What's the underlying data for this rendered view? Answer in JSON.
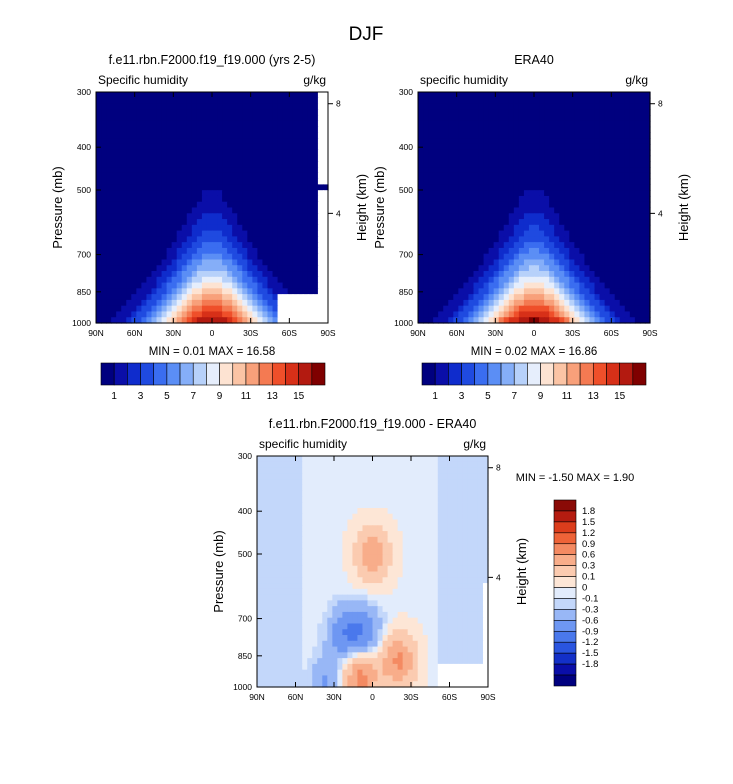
{
  "figure": {
    "title": "DJF"
  },
  "colors": {
    "abs_levels": [
      "#00007f",
      "#0a0ea8",
      "#0f2ccc",
      "#1f4ae0",
      "#3a6df0",
      "#5b8ef5",
      "#85aef8",
      "#b7d1fa",
      "#e6eefc",
      "#fde3d2",
      "#fbc4a5",
      "#f8a07a",
      "#f47a52",
      "#ef4f2a",
      "#d73018",
      "#b31a10",
      "#7f0000"
    ],
    "diff_levels": [
      "#00007f",
      "#0a0ea8",
      "#1330c8",
      "#2a55e0",
      "#4a78ec",
      "#6e97f2",
      "#98b7f6",
      "#c3d7fa",
      "#e2ecfc",
      "#fde6d6",
      "#fbcbb0",
      "#f8ad8a",
      "#f48a62",
      "#ee6338",
      "#dc3d1c",
      "#b51c10",
      "#8a0a06"
    ],
    "missing": "#ffffff"
  },
  "charts": {
    "left": {
      "title": "f.e11.rbn.F2000.f19_f19.000 (yrs 2-5)",
      "left_label": "Specific humidity",
      "right_label": "g/kg",
      "ylabel": "Pressure (mb)",
      "y2label": "Height (km)",
      "minmax": "MIN =  0.01   MAX =  16.58"
    },
    "right": {
      "title": "ERA40",
      "left_label": "specific humidity",
      "right_label": "g/kg",
      "ylabel": "Pressure (mb)",
      "y2label": "Height (km)",
      "minmax": "MIN =  0.02   MAX =  16.86"
    },
    "diff": {
      "title": "f.e11.rbn.F2000.f19_f19.000 - ERA40",
      "left_label": "specific humidity",
      "right_label": "g/kg",
      "ylabel": "Pressure (mb)",
      "y2label": "Height (km)",
      "minmax": "MIN = -1.50   MAX =  1.90"
    }
  },
  "chart_data": [
    {
      "type": "heatmap",
      "id": "left",
      "title": "f.e11.rbn.F2000.f19_f19.000 (yrs 2-5)",
      "variable": "Specific humidity",
      "units": "g/kg",
      "xlabel": "",
      "ylabel": "Pressure (mb)",
      "y2label": "Height (km)",
      "xticks": [
        "90N",
        "60N",
        "30N",
        "0",
        "30S",
        "60S",
        "90S"
      ],
      "yticks": [
        300,
        400,
        500,
        700,
        850,
        1000
      ],
      "y2ticks": [
        8,
        4
      ],
      "xlim": [
        90,
        -90
      ],
      "ylim": [
        1000,
        300
      ],
      "yscale": "log",
      "min": 0.01,
      "max": 16.58,
      "peak_lat": 0,
      "peak_value": 16.58
    },
    {
      "type": "heatmap",
      "id": "right",
      "title": "ERA40",
      "variable": "specific humidity",
      "units": "g/kg",
      "xlabel": "",
      "ylabel": "Pressure (mb)",
      "y2label": "Height (km)",
      "xticks": [
        "90N",
        "60N",
        "30N",
        "0",
        "30S",
        "60S",
        "90S"
      ],
      "yticks": [
        300,
        400,
        500,
        700,
        850,
        1000
      ],
      "y2ticks": [
        8,
        4
      ],
      "xlim": [
        90,
        -90
      ],
      "ylim": [
        1000,
        300
      ],
      "yscale": "log",
      "min": 0.02,
      "max": 16.86,
      "peak_lat": 0,
      "peak_value": 16.86
    },
    {
      "type": "heatmap",
      "id": "diff",
      "title": "f.e11.rbn.F2000.f19_f19.000 - ERA40",
      "variable": "specific humidity",
      "units": "g/kg",
      "xlabel": "",
      "ylabel": "Pressure (mb)",
      "y2label": "Height (km)",
      "xticks": [
        "90N",
        "60N",
        "30N",
        "0",
        "30S",
        "60S",
        "90S"
      ],
      "yticks": [
        300,
        400,
        500,
        700,
        850,
        1000
      ],
      "y2ticks": [
        8,
        4
      ],
      "xlim": [
        90,
        -90
      ],
      "ylim": [
        1000,
        300
      ],
      "yscale": "log",
      "min": -1.5,
      "max": 1.9,
      "features": [
        {
          "lat": 0,
          "p": 500,
          "value": 0.8
        },
        {
          "lat": -20,
          "p": 870,
          "value": 0.9
        },
        {
          "lat": 10,
          "p": 950,
          "value": 1.0
        },
        {
          "lat": 20,
          "p": 760,
          "value": -0.6
        },
        {
          "lat": 5,
          "p": 760,
          "value": -0.5
        },
        {
          "lat": 35,
          "p": 980,
          "value": -0.4
        },
        {
          "lat": 70,
          "p": 450,
          "value": -0.05
        },
        {
          "lat": -60,
          "p": 450,
          "value": -0.05
        }
      ]
    }
  ],
  "colorbars": {
    "abs": {
      "labels": [
        "1",
        "3",
        "5",
        "7",
        "9",
        "11",
        "13",
        "15"
      ]
    },
    "diff": {
      "labels": [
        "1.8",
        "1.5",
        "1.2",
        "0.9",
        "0.6",
        "0.3",
        "0.1",
        "0",
        "-0.1",
        "-0.3",
        "-0.6",
        "-0.9",
        "-1.2",
        "-1.5",
        "-1.8"
      ]
    }
  }
}
